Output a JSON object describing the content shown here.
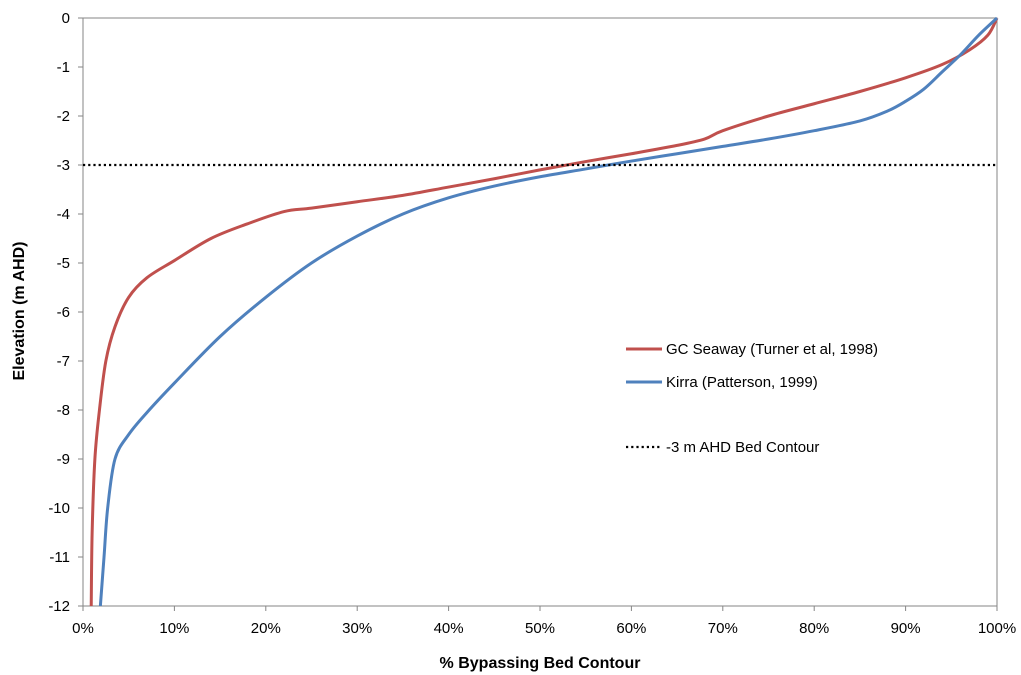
{
  "chart_data": {
    "type": "line",
    "title": "",
    "xlabel": "% Bypassing Bed Contour",
    "ylabel": "Elevation (m AHD)",
    "xlim": [
      0,
      100
    ],
    "ylim": [
      -12,
      0
    ],
    "x_ticks": [
      0,
      10,
      20,
      30,
      40,
      50,
      60,
      70,
      80,
      90,
      100
    ],
    "x_tick_labels": [
      "0%",
      "10%",
      "20%",
      "30%",
      "40%",
      "50%",
      "60%",
      "70%",
      "80%",
      "90%",
      "100%"
    ],
    "y_ticks": [
      0,
      -1,
      -2,
      -3,
      -4,
      -5,
      -6,
      -7,
      -8,
      -9,
      -10,
      -11,
      -12
    ],
    "y_tick_labels": [
      "0",
      "-1",
      "-2",
      "-3",
      "-4",
      "-5",
      "-6",
      "-7",
      "-8",
      "-9",
      "-10",
      "-11",
      "-12"
    ],
    "grid": false,
    "legend_position": "right-middle",
    "series": [
      {
        "name": "GC Seaway (Turner et al, 1998)",
        "color": "#c0504d",
        "style": "solid",
        "points": [
          [
            0.9,
            -12
          ],
          [
            1.0,
            -10.5
          ],
          [
            1.3,
            -9
          ],
          [
            1.8,
            -8
          ],
          [
            2.5,
            -7
          ],
          [
            3.5,
            -6.3
          ],
          [
            5,
            -5.7
          ],
          [
            7,
            -5.3
          ],
          [
            10,
            -4.95
          ],
          [
            14,
            -4.5
          ],
          [
            18,
            -4.2
          ],
          [
            22,
            -3.95
          ],
          [
            25,
            -3.88
          ],
          [
            30,
            -3.75
          ],
          [
            35,
            -3.62
          ],
          [
            40,
            -3.45
          ],
          [
            45,
            -3.28
          ],
          [
            50,
            -3.1
          ],
          [
            55,
            -2.93
          ],
          [
            60,
            -2.77
          ],
          [
            65,
            -2.6
          ],
          [
            68,
            -2.47
          ],
          [
            70,
            -2.3
          ],
          [
            75,
            -2.0
          ],
          [
            80,
            -1.75
          ],
          [
            85,
            -1.5
          ],
          [
            90,
            -1.22
          ],
          [
            94,
            -0.95
          ],
          [
            97,
            -0.65
          ],
          [
            99,
            -0.35
          ],
          [
            100,
            0
          ]
        ]
      },
      {
        "name": "Kirra (Patterson, 1999)",
        "color": "#4f81bd",
        "style": "solid",
        "points": [
          [
            1.9,
            -12
          ],
          [
            2.3,
            -11
          ],
          [
            2.7,
            -10
          ],
          [
            3.5,
            -9
          ],
          [
            5,
            -8.5
          ],
          [
            7,
            -8.05
          ],
          [
            10,
            -7.45
          ],
          [
            15,
            -6.5
          ],
          [
            20,
            -5.7
          ],
          [
            25,
            -5.0
          ],
          [
            30,
            -4.45
          ],
          [
            35,
            -4.0
          ],
          [
            40,
            -3.67
          ],
          [
            45,
            -3.43
          ],
          [
            50,
            -3.24
          ],
          [
            55,
            -3.08
          ],
          [
            60,
            -2.92
          ],
          [
            65,
            -2.77
          ],
          [
            70,
            -2.62
          ],
          [
            75,
            -2.47
          ],
          [
            80,
            -2.3
          ],
          [
            85,
            -2.1
          ],
          [
            88,
            -1.9
          ],
          [
            90,
            -1.7
          ],
          [
            92,
            -1.45
          ],
          [
            94,
            -1.1
          ],
          [
            96,
            -0.75
          ],
          [
            98,
            -0.35
          ],
          [
            100,
            0
          ]
        ]
      },
      {
        "name": "-3 m AHD Bed Contour",
        "color": "#000000",
        "style": "dotted",
        "points": [
          [
            0,
            -3
          ],
          [
            100,
            -3
          ]
        ]
      }
    ]
  }
}
